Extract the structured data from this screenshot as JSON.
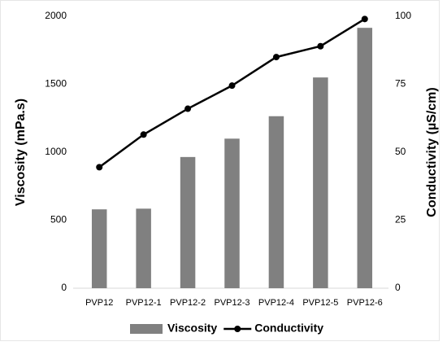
{
  "chart_data": {
    "type": "bar",
    "categories": [
      "PVP12",
      "PVP12-1",
      "PVP12-2",
      "PVP12-3",
      "PVP12-4",
      "PVP12-5",
      "PVP12-6"
    ],
    "series": [
      {
        "name": "Viscosity",
        "type": "bar",
        "color": "#808080",
        "values": [
          580,
          585,
          965,
          1100,
          1265,
          1550,
          1915
        ]
      },
      {
        "name": "Conductivity",
        "type": "line",
        "axis": "y2",
        "color": "#000000",
        "values": [
          44.5,
          56.5,
          66,
          74.5,
          85,
          89,
          99
        ]
      }
    ],
    "ylabel": "Viscosity (mPa.s)",
    "y2label": "Conductivity (µS/cm)",
    "ylim": [
      0,
      2000
    ],
    "yticks": [
      0,
      500,
      1000,
      1500,
      2000
    ],
    "y2lim": [
      0,
      100
    ],
    "y2ticks": [
      0,
      25,
      50,
      75,
      100
    ],
    "grid": false,
    "legend": "bottom"
  }
}
